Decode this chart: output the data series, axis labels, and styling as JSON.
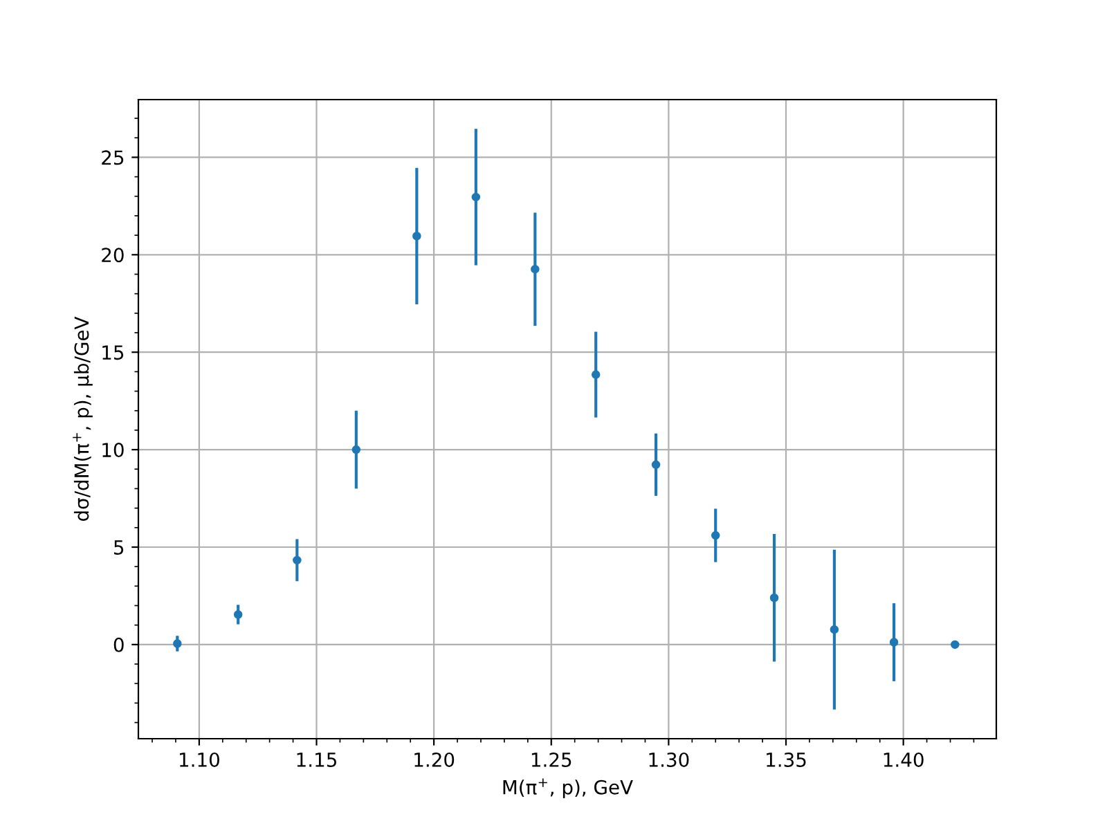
{
  "chart_data": {
    "type": "scatter",
    "xlabel": "M(π$^{+}$, p), GeV",
    "ylabel": "dσ/dM(π$^{+}$, p), μb/GeV",
    "x": [
      1.0907,
      1.1166,
      1.1417,
      1.1669,
      1.1927,
      1.2179,
      1.2431,
      1.269,
      1.2946,
      1.32,
      1.345,
      1.3706,
      1.396,
      1.422
    ],
    "series": [
      {
        "color": "#1f77b4",
        "values": [
          0.05,
          1.54,
          4.33,
          10.0,
          20.96,
          22.96,
          19.26,
          13.85,
          9.23,
          5.6,
          2.4,
          0.77,
          0.12,
          0.0
        ],
        "errors": [
          0.4,
          0.5,
          1.08,
          2.0,
          3.5,
          3.5,
          2.9,
          2.2,
          1.6,
          1.37,
          3.27,
          4.1,
          2.0,
          null
        ]
      }
    ],
    "xlim": [
      1.0741,
      1.4396
    ],
    "ylim": [
      -4.83,
      27.96
    ],
    "xticks": [
      {
        "value": 1.1,
        "label": "1.10"
      },
      {
        "value": 1.15,
        "label": "1.15"
      },
      {
        "value": 1.2,
        "label": "1.20"
      },
      {
        "value": 1.25,
        "label": "1.25"
      },
      {
        "value": 1.3,
        "label": "1.30"
      },
      {
        "value": 1.35,
        "label": "1.35"
      },
      {
        "value": 1.4,
        "label": "1.40"
      }
    ],
    "yticks": [
      0,
      5,
      10,
      15,
      20,
      25
    ],
    "grid": true,
    "marker": "circle",
    "legend": false
  }
}
